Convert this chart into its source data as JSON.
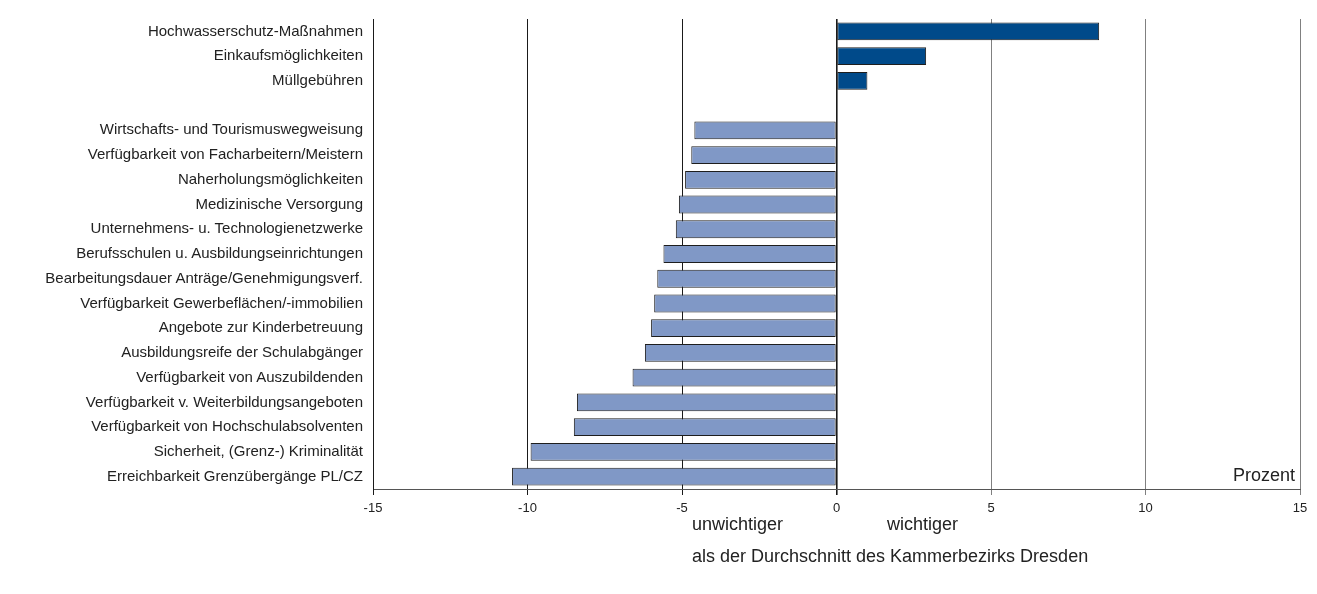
{
  "chart_data": {
    "type": "bar",
    "orientation": "horizontal",
    "categories": [
      "Hochwasserschutz-Maßnahmen",
      "Einkaufsmöglichkeiten",
      "Müllgebühren",
      null,
      "Wirtschafts- und Tourismuswegweisung",
      "Verfügbarkeit von Facharbeitern/Meistern",
      "Naherholungsmöglichkeiten",
      "Medizinische Versorgung",
      "Unternehmens- u. Technologienetzwerke",
      "Berufsschulen u. Ausbildungseinrichtungen",
      "Bearbeitungsdauer Anträge/Genehmigungsverf.",
      "Verfügbarkeit Gewerbeflächen/-immobilien",
      "Angebote zur Kinderbetreuung",
      "Ausbildungsreife der Schulabgänger",
      "Verfügbarkeit von Auszubildenden",
      "Verfügbarkeit v. Weiterbildungsangeboten",
      "Verfügbarkeit von Hochschulabsolventen",
      "Sicherheit, (Grenz-) Kriminalität",
      "Erreichbarkeit Grenzübergänge PL/CZ"
    ],
    "values": [
      8.5,
      2.9,
      1.0,
      null,
      -4.6,
      -4.7,
      -4.9,
      -5.1,
      -5.2,
      -5.6,
      -5.8,
      -5.9,
      -6.0,
      -6.2,
      -6.6,
      -8.4,
      -8.5,
      -9.9,
      -10.5
    ],
    "colors": [
      "#004a8a",
      "#004a8a",
      "#004a8a",
      null,
      "#8098c6",
      "#8098c6",
      "#8098c6",
      "#8098c6",
      "#8098c6",
      "#8098c6",
      "#8098c6",
      "#8098c6",
      "#8098c6",
      "#8098c6",
      "#8098c6",
      "#8098c6",
      "#8098c6",
      "#8098c6",
      "#8098c6"
    ],
    "xlim": [
      -15,
      15
    ],
    "xticks": [
      -15,
      -10,
      -5,
      0,
      5,
      10,
      15
    ],
    "xlabel": "Prozent",
    "annotations": [
      "unwichtiger",
      "wichtiger",
      "als der Durchschnitt des Kammerbezirks Dresden"
    ],
    "grid": "x"
  }
}
